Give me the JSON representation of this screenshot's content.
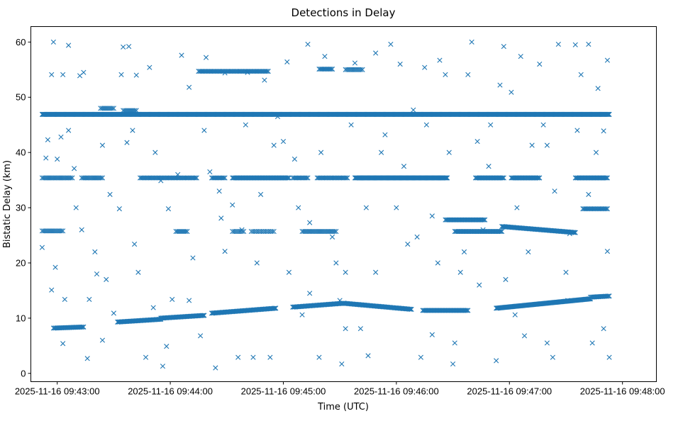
{
  "chart_data": {
    "type": "scatter",
    "title": "Detections in Delay",
    "xlabel": "Time (UTC)",
    "ylabel": "Bistatic Delay (km)",
    "x_unit": "seconds after 2025-11-16 09:42:00",
    "xlim": [
      46,
      378
    ],
    "ylim": [
      -1.5,
      62.8
    ],
    "grid": false,
    "marker": "x",
    "color": "#1f77b4",
    "xticks": [
      {
        "value": 60,
        "label": "2025-11-16 09:43:00"
      },
      {
        "value": 120,
        "label": "2025-11-16 09:44:00"
      },
      {
        "value": 180,
        "label": "2025-11-16 09:45:00"
      },
      {
        "value": 240,
        "label": "2025-11-16 09:46:00"
      },
      {
        "value": 300,
        "label": "2025-11-16 09:47:00"
      },
      {
        "value": 360,
        "label": "2025-11-16 09:48:00"
      }
    ],
    "yticks": [
      {
        "value": 0,
        "label": "0"
      },
      {
        "value": 10,
        "label": "10"
      },
      {
        "value": 20,
        "label": "20"
      },
      {
        "value": 30,
        "label": "30"
      },
      {
        "value": 40,
        "label": "40"
      },
      {
        "value": 50,
        "label": "50"
      },
      {
        "value": 60,
        "label": "60"
      }
    ],
    "tracks": [
      {
        "t0": 52,
        "t1": 353,
        "v0": 46.9,
        "v1": 46.9,
        "step": 0.35
      },
      {
        "t0": 52,
        "t1": 68,
        "v0": 35.4,
        "v1": 35.4,
        "step": 0.8
      },
      {
        "t0": 73,
        "t1": 84,
        "v0": 35.4,
        "v1": 35.4,
        "step": 0.8
      },
      {
        "t0": 104,
        "t1": 134,
        "v0": 35.4,
        "v1": 35.4,
        "step": 0.7
      },
      {
        "t0": 142,
        "t1": 149,
        "v0": 35.4,
        "v1": 35.4,
        "step": 0.7
      },
      {
        "t0": 153,
        "t1": 183,
        "v0": 35.4,
        "v1": 35.4,
        "step": 0.6
      },
      {
        "t0": 185,
        "t1": 193,
        "v0": 35.4,
        "v1": 35.4,
        "step": 0.7
      },
      {
        "t0": 198,
        "t1": 214,
        "v0": 35.4,
        "v1": 35.4,
        "step": 0.7
      },
      {
        "t0": 218,
        "t1": 267,
        "v0": 35.4,
        "v1": 35.4,
        "step": 0.4
      },
      {
        "t0": 282,
        "t1": 297,
        "v0": 35.4,
        "v1": 35.4,
        "step": 0.6
      },
      {
        "t0": 301,
        "t1": 316,
        "v0": 35.4,
        "v1": 35.4,
        "step": 0.6
      },
      {
        "t0": 335,
        "t1": 352,
        "v0": 35.4,
        "v1": 35.4,
        "step": 0.6
      },
      {
        "t0": 52,
        "t1": 63,
        "v0": 25.8,
        "v1": 25.8,
        "step": 0.8
      },
      {
        "t0": 123,
        "t1": 129,
        "v0": 25.7,
        "v1": 25.7,
        "step": 0.8
      },
      {
        "t0": 153,
        "t1": 159,
        "v0": 25.7,
        "v1": 25.7,
        "step": 0.9
      },
      {
        "t0": 163,
        "t1": 175,
        "v0": 25.7,
        "v1": 25.7,
        "step": 0.9
      },
      {
        "t0": 190,
        "t1": 208,
        "v0": 25.7,
        "v1": 25.7,
        "step": 0.8
      },
      {
        "t0": 266,
        "t1": 287,
        "v0": 27.8,
        "v1": 27.8,
        "step": 0.6
      },
      {
        "t0": 271,
        "t1": 296,
        "v0": 25.7,
        "v1": 25.7,
        "step": 0.6
      },
      {
        "t0": 296,
        "t1": 335,
        "v0": 26.6,
        "v1": 25.5,
        "step": 0.5
      },
      {
        "t0": 339,
        "t1": 352,
        "v0": 29.8,
        "v1": 29.8,
        "step": 0.7
      },
      {
        "t0": 135,
        "t1": 172,
        "v0": 54.7,
        "v1": 54.7,
        "step": 0.7
      },
      {
        "t0": 199,
        "t1": 206,
        "v0": 55.1,
        "v1": 55.1,
        "step": 0.7
      },
      {
        "t0": 213,
        "t1": 222,
        "v0": 55.0,
        "v1": 55.0,
        "step": 0.8
      },
      {
        "t0": 83,
        "t1": 90,
        "v0": 48.0,
        "v1": 48.0,
        "step": 0.8
      },
      {
        "t0": 95,
        "t1": 102,
        "v0": 47.6,
        "v1": 47.6,
        "step": 0.8
      },
      {
        "t0": 58,
        "t1": 74,
        "v0": 8.2,
        "v1": 8.4,
        "step": 0.6
      },
      {
        "t0": 92,
        "t1": 115,
        "v0": 9.3,
        "v1": 9.8,
        "step": 0.5
      },
      {
        "t0": 115,
        "t1": 138,
        "v0": 10.0,
        "v1": 10.5,
        "step": 0.5
      },
      {
        "t0": 142,
        "t1": 176,
        "v0": 10.9,
        "v1": 11.8,
        "step": 0.5
      },
      {
        "t0": 185,
        "t1": 212,
        "v0": 12.0,
        "v1": 12.7,
        "step": 0.5
      },
      {
        "t0": 212,
        "t1": 248,
        "v0": 12.7,
        "v1": 11.6,
        "step": 0.5
      },
      {
        "t0": 254,
        "t1": 278,
        "v0": 11.4,
        "v1": 11.4,
        "step": 0.6
      },
      {
        "t0": 293,
        "t1": 343,
        "v0": 11.8,
        "v1": 13.5,
        "step": 0.4
      },
      {
        "t0": 343,
        "t1": 353,
        "v0": 13.8,
        "v1": 14.0,
        "step": 0.6
      }
    ],
    "points": [
      [
        52,
        22.8
      ],
      [
        57,
        15.1
      ],
      [
        59,
        19.2
      ],
      [
        63,
        5.4
      ],
      [
        64,
        13.4
      ],
      [
        55,
        42.3
      ],
      [
        58,
        60
      ],
      [
        66,
        59.4
      ],
      [
        57,
        54.1
      ],
      [
        63,
        54.1
      ],
      [
        62,
        42.8
      ],
      [
        69,
        37.1
      ],
      [
        74,
        54.5
      ],
      [
        72,
        53.9
      ],
      [
        76,
        2.7
      ],
      [
        77,
        13.4
      ],
      [
        81,
        18
      ],
      [
        84,
        6
      ],
      [
        86,
        17
      ],
      [
        90,
        10.9
      ],
      [
        93,
        29.8
      ],
      [
        94,
        54.1
      ],
      [
        95,
        59.1
      ],
      [
        98,
        59.2
      ],
      [
        97,
        41.8
      ],
      [
        101,
        23.4
      ],
      [
        102,
        54
      ],
      [
        107,
        2.9
      ],
      [
        109,
        55.4
      ],
      [
        111,
        11.9
      ],
      [
        116,
        1.3
      ],
      [
        118,
        4.9
      ],
      [
        119,
        29.8
      ],
      [
        121,
        13.4
      ],
      [
        126,
        57.6
      ],
      [
        130,
        51.8
      ],
      [
        132,
        20.9
      ],
      [
        136,
        6.8
      ],
      [
        139,
        57.2
      ],
      [
        141,
        36.5
      ],
      [
        144,
        1
      ],
      [
        147,
        28.1
      ],
      [
        149,
        54.4
      ],
      [
        153,
        30.5
      ],
      [
        156,
        2.9
      ],
      [
        158,
        26
      ],
      [
        161,
        54.5
      ],
      [
        164,
        2.9
      ],
      [
        170,
        53.1
      ],
      [
        173,
        2.9
      ],
      [
        177,
        46.5
      ],
      [
        182,
        56.4
      ],
      [
        186,
        38.8
      ],
      [
        190,
        10.6
      ],
      [
        193,
        59.6
      ],
      [
        194,
        27.3
      ],
      [
        199,
        2.9
      ],
      [
        202,
        57.4
      ],
      [
        206,
        24.7
      ],
      [
        211,
        1.7
      ],
      [
        213,
        8.1
      ],
      [
        218,
        56.2
      ],
      [
        221,
        8.1
      ],
      [
        225,
        3.2
      ],
      [
        229,
        58
      ],
      [
        234,
        43.2
      ],
      [
        237,
        59.6
      ],
      [
        242,
        56
      ],
      [
        246,
        23.4
      ],
      [
        249,
        47.7
      ],
      [
        253,
        2.9
      ],
      [
        255,
        55.4
      ],
      [
        259,
        7
      ],
      [
        263,
        56.7
      ],
      [
        266,
        54.1
      ],
      [
        270,
        1.7
      ],
      [
        271,
        5.5
      ],
      [
        278,
        54.1
      ],
      [
        280,
        60
      ],
      [
        283,
        42
      ],
      [
        286,
        26
      ],
      [
        293,
        2.3
      ],
      [
        295,
        52.2
      ],
      [
        297,
        59.2
      ],
      [
        301,
        50.9
      ],
      [
        306,
        57.4
      ],
      [
        308,
        6.8
      ],
      [
        312,
        41.3
      ],
      [
        316,
        56
      ],
      [
        320,
        5.5
      ],
      [
        323,
        2.9
      ],
      [
        326,
        59.6
      ],
      [
        330,
        18.3
      ],
      [
        332,
        25.3
      ],
      [
        335,
        59.5
      ],
      [
        338,
        54.1
      ],
      [
        342,
        59.6
      ],
      [
        344,
        5.5
      ],
      [
        347,
        51.6
      ],
      [
        350,
        8.1
      ],
      [
        352,
        56.7
      ],
      [
        353,
        2.9
      ],
      [
        352,
        22.1
      ],
      [
        73,
        26
      ],
      [
        88,
        32.4
      ],
      [
        103,
        18.3
      ],
      [
        115,
        34.9
      ],
      [
        130,
        13.2
      ],
      [
        149,
        22.1
      ],
      [
        168,
        32.4
      ],
      [
        183,
        18.3
      ],
      [
        194,
        14.5
      ],
      [
        210,
        13.2
      ],
      [
        229,
        18.3
      ],
      [
        244,
        37.5
      ],
      [
        259,
        28.5
      ],
      [
        274,
        18.3
      ],
      [
        289,
        37.5
      ],
      [
        303,
        10.6
      ],
      [
        320,
        41.3
      ],
      [
        331,
        13.2
      ],
      [
        342,
        32.4
      ],
      [
        350,
        43.9
      ],
      [
        84,
        41.3
      ],
      [
        175,
        41.3
      ],
      [
        213,
        18.3
      ],
      [
        251,
        24.7
      ],
      [
        60,
        38.8
      ],
      [
        70,
        30
      ],
      [
        80,
        22
      ],
      [
        100,
        44
      ],
      [
        112,
        40
      ],
      [
        124,
        36
      ],
      [
        138,
        44
      ],
      [
        146,
        33
      ],
      [
        160,
        45
      ],
      [
        166,
        20
      ],
      [
        180,
        42
      ],
      [
        188,
        30
      ],
      [
        200,
        40
      ],
      [
        208,
        20
      ],
      [
        216,
        45
      ],
      [
        224,
        30
      ],
      [
        232,
        40
      ],
      [
        240,
        30
      ],
      [
        256,
        45
      ],
      [
        262,
        20
      ],
      [
        268,
        40
      ],
      [
        276,
        22
      ],
      [
        284,
        16
      ],
      [
        290,
        45
      ],
      [
        298,
        17
      ],
      [
        304,
        30
      ],
      [
        310,
        22
      ],
      [
        318,
        45
      ],
      [
        324,
        33
      ],
      [
        336,
        44
      ],
      [
        346,
        40
      ],
      [
        66,
        44
      ],
      [
        54,
        39
      ]
    ]
  }
}
